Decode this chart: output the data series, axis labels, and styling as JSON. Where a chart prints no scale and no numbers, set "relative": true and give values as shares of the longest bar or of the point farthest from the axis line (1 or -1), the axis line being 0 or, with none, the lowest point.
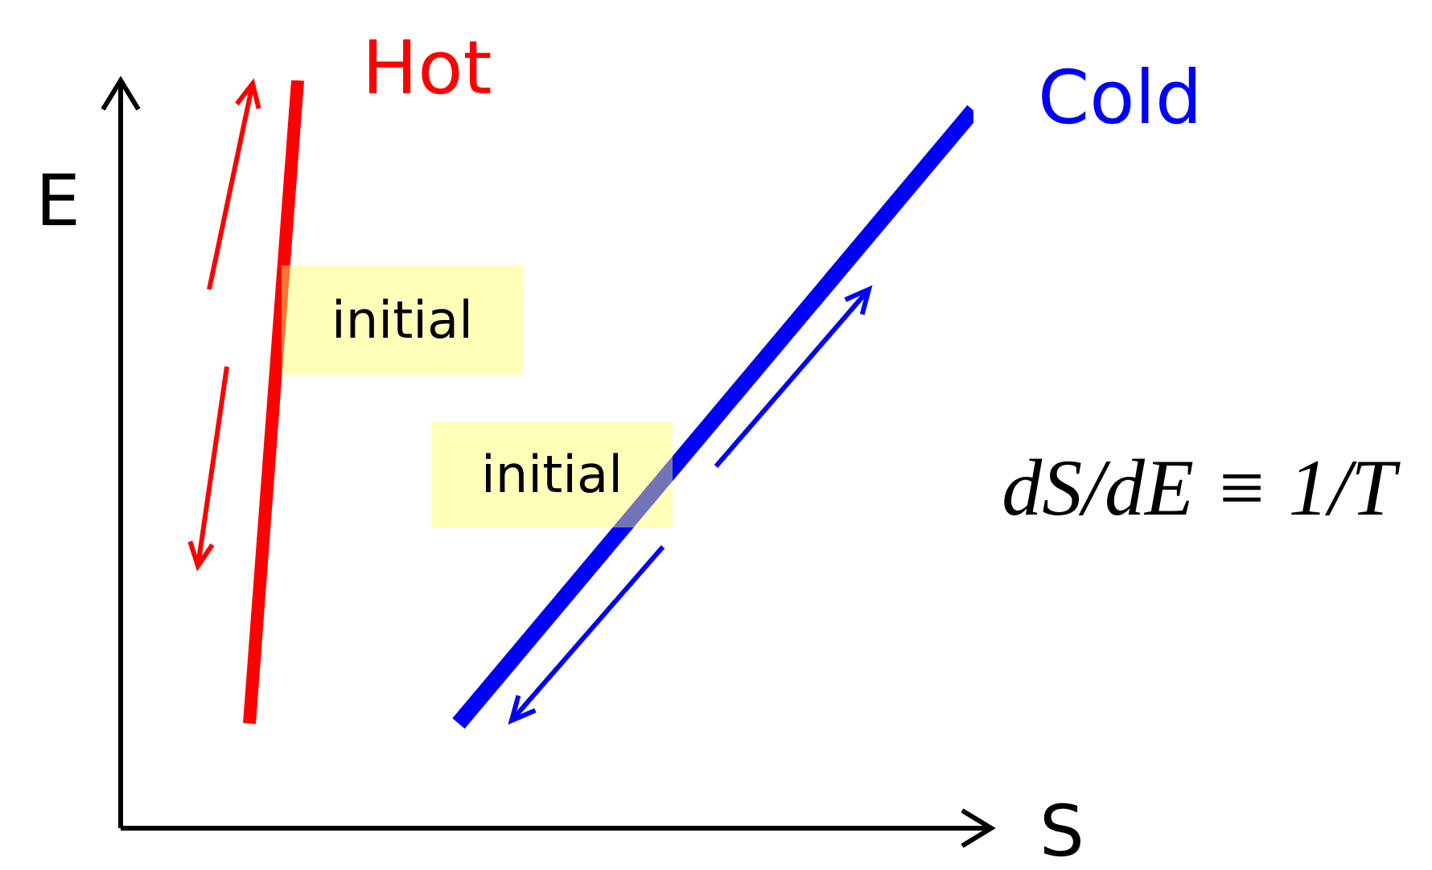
{
  "chart_data": {
    "type": "line",
    "relative": true,
    "xlabel": "S",
    "ylabel": "E",
    "marker": "none",
    "categories": [
      null,
      null,
      null,
      null,
      null,
      null,
      null,
      null,
      null,
      null,
      null,
      null,
      null,
      null,
      null,
      null,
      null,
      null,
      null,
      null,
      null,
      null,
      null,
      null,
      null,
      null,
      null,
      null,
      null,
      null,
      null,
      null,
      null,
      null,
      null,
      null,
      null,
      null,
      null,
      null,
      null,
      null,
      null,
      null,
      null,
      null,
      null,
      null,
      null,
      null,
      null,
      null,
      null,
      null
    ],
    "series": [
      {
        "name": "Hot",
        "color": "#ff0000",
        "values": [
          null,
          null,
          null,
          null,
          null,
          null,
          null,
          null,
          0.14,
          null,
          null,
          1,
          null,
          null,
          null,
          null,
          null,
          null,
          null,
          null,
          null,
          null,
          null,
          null,
          null,
          null,
          null,
          null,
          null,
          null,
          null,
          null,
          null,
          null,
          null,
          null,
          null,
          null,
          null,
          null,
          null,
          null,
          null,
          null,
          null,
          null,
          null,
          null,
          null,
          null,
          null,
          null,
          null,
          null
        ]
      },
      {
        "name": "Cold",
        "color": "#0000ff",
        "values": [
          null,
          null,
          null,
          null,
          null,
          null,
          null,
          null,
          null,
          null,
          null,
          null,
          null,
          null,
          null,
          null,
          null,
          null,
          null,
          null,
          null,
          0.14,
          null,
          null,
          null,
          null,
          null,
          null,
          null,
          null,
          null,
          null,
          null,
          null,
          null,
          null,
          null,
          null,
          null,
          null,
          null,
          null,
          null,
          null,
          null,
          null,
          null,
          null,
          null,
          null,
          null,
          null,
          null,
          0.96
        ]
      }
    ],
    "annotations": [
      "initial",
      "initial",
      "dS/dE ≡ 1/T"
    ]
  }
}
